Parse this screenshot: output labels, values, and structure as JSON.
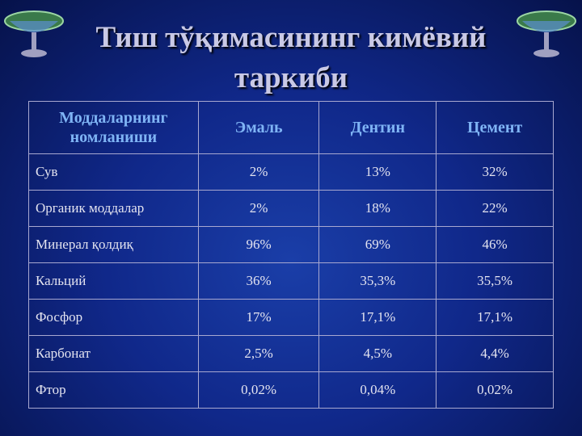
{
  "header": {
    "title": "Тиш тўқимасининг кимёвий таркиби"
  },
  "table": {
    "columns": [
      "Моддаларнинг номланиши",
      "Эмаль",
      "Дентин",
      "Цемент"
    ],
    "rows": [
      [
        "Сув",
        "2%",
        "13%",
        "32%"
      ],
      [
        "Органик моддалар",
        "2%",
        "18%",
        "22%"
      ],
      [
        "Минерал қолдиқ",
        "96%",
        "69%",
        "46%"
      ],
      [
        "Кальций",
        "36%",
        "35,3%",
        "35,5%"
      ],
      [
        "Фосфор",
        "17%",
        "17,1%",
        "17,1%"
      ],
      [
        "Карбонат",
        "2,5%",
        "4,5%",
        "4,4%"
      ],
      [
        "Фтор",
        "0,02%",
        "0,04%",
        "0,02%"
      ]
    ]
  }
}
